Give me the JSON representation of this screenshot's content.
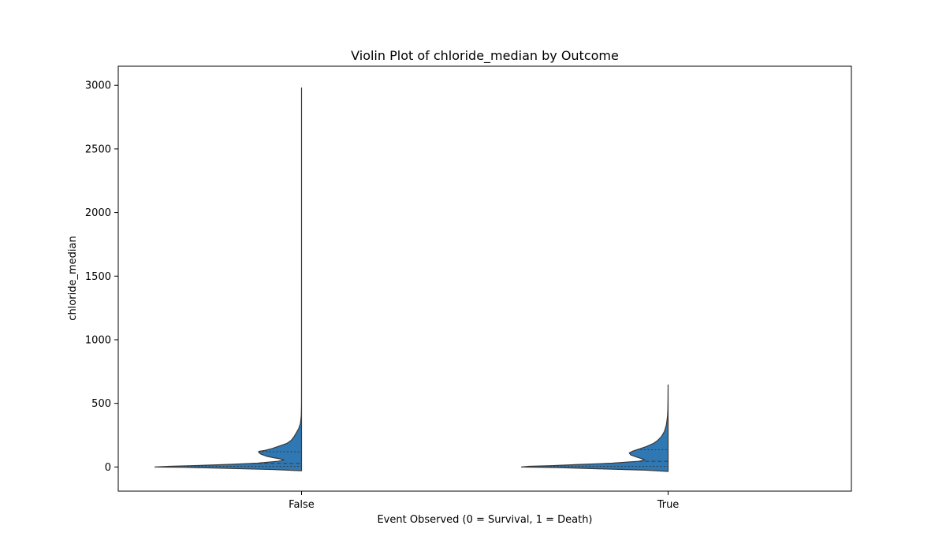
{
  "chart_data": {
    "type": "violin",
    "title": "Violin Plot of chloride_median by Outcome",
    "xlabel": "Event Observed (0 = Survival, 1 = Death)",
    "ylabel": "chloride_median",
    "categories": [
      "False",
      "True"
    ],
    "yticks": [
      "0",
      "500",
      "1000",
      "1500",
      "2000",
      "2500",
      "3000"
    ],
    "ytick_values": [
      0,
      500,
      1000,
      1500,
      2000,
      2500,
      3000
    ],
    "ylim": [
      -190,
      3150
    ],
    "grid": false,
    "fill_color": "#2f78b4",
    "edge_color": "#3a3a3a",
    "violins": [
      {
        "category": "False",
        "min": -30,
        "max": 2980,
        "quartiles": [
          5,
          28,
          120
        ],
        "density_profile": [
          [
            -30,
            0.0
          ],
          [
            -20,
            0.2
          ],
          [
            -10,
            0.55
          ],
          [
            -3,
            0.8
          ],
          [
            0,
            1.0
          ],
          [
            5,
            0.9
          ],
          [
            10,
            0.75
          ],
          [
            20,
            0.5
          ],
          [
            30,
            0.3
          ],
          [
            45,
            0.16
          ],
          [
            55,
            0.12
          ],
          [
            65,
            0.15
          ],
          [
            75,
            0.2
          ],
          [
            85,
            0.24
          ],
          [
            100,
            0.275
          ],
          [
            112,
            0.29
          ],
          [
            122,
            0.293
          ],
          [
            130,
            0.25
          ],
          [
            145,
            0.2
          ],
          [
            165,
            0.15
          ],
          [
            185,
            0.1
          ],
          [
            210,
            0.07
          ],
          [
            240,
            0.05
          ],
          [
            270,
            0.035
          ],
          [
            300,
            0.02
          ],
          [
            340,
            0.008
          ],
          [
            400,
            0.002
          ],
          [
            460,
            0.0008
          ],
          [
            500,
            0.0003
          ],
          [
            700,
            0.0001
          ],
          [
            1500,
            5e-05
          ],
          [
            2980,
            3e-05
          ]
        ]
      },
      {
        "category": "True",
        "min": -35,
        "max": 645,
        "quartiles": [
          5,
          45,
          135
        ],
        "density_profile": [
          [
            -35,
            0.0
          ],
          [
            -25,
            0.15
          ],
          [
            -15,
            0.45
          ],
          [
            -5,
            0.75
          ],
          [
            0,
            1.0
          ],
          [
            5,
            0.95
          ],
          [
            10,
            0.8
          ],
          [
            20,
            0.6
          ],
          [
            30,
            0.38
          ],
          [
            45,
            0.2
          ],
          [
            55,
            0.16
          ],
          [
            65,
            0.18
          ],
          [
            80,
            0.22
          ],
          [
            95,
            0.255
          ],
          [
            110,
            0.265
          ],
          [
            125,
            0.24
          ],
          [
            140,
            0.2
          ],
          [
            160,
            0.15
          ],
          [
            185,
            0.1
          ],
          [
            210,
            0.07
          ],
          [
            240,
            0.045
          ],
          [
            280,
            0.025
          ],
          [
            330,
            0.012
          ],
          [
            400,
            0.004
          ],
          [
            450,
            0.002
          ],
          [
            520,
            0.001
          ],
          [
            600,
            0.0005
          ],
          [
            645,
            0.0003
          ]
        ]
      }
    ]
  }
}
